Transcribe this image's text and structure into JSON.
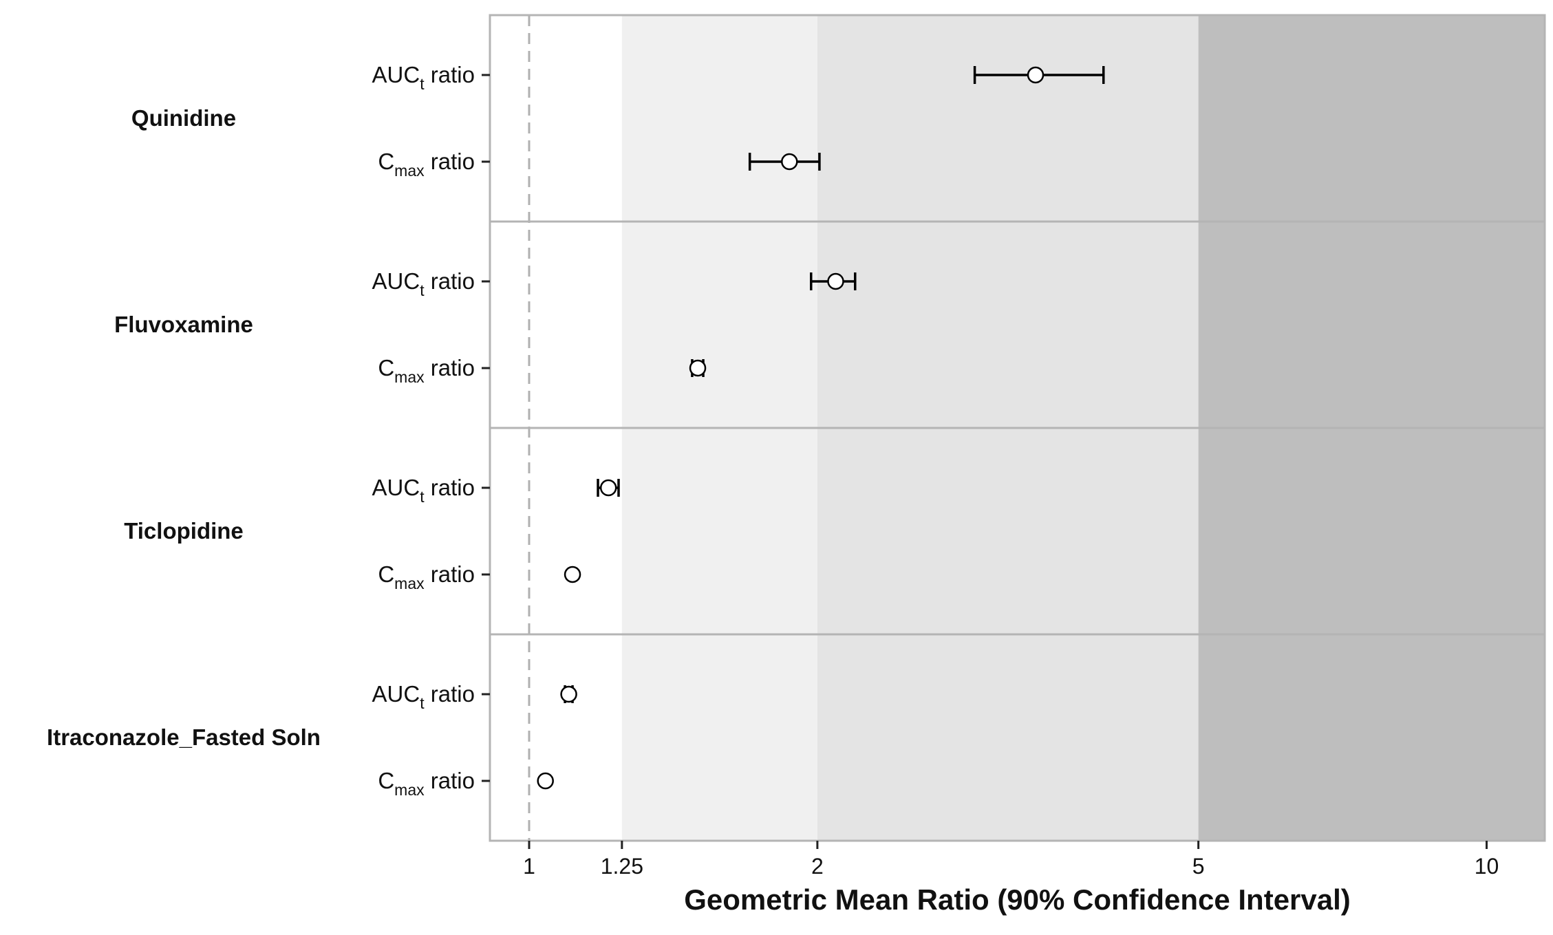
{
  "chart_data": {
    "type": "forest",
    "xlabel": "Geometric Mean Ratio (90% Confidence Interval)",
    "x_scale": "log",
    "xlim": [
      0.91,
      11.5
    ],
    "x_ticks": [
      1,
      1.25,
      2,
      5,
      10
    ],
    "x_tick_labels": [
      "1",
      "1.25",
      "2",
      "5",
      "10"
    ],
    "reference_line": 1,
    "bands": [
      {
        "from": 0.91,
        "to": 1.25,
        "color": "#ffffff"
      },
      {
        "from": 1.25,
        "to": 2,
        "color": "#f0f0f0"
      },
      {
        "from": 2,
        "to": 5,
        "color": "#e4e4e4"
      },
      {
        "from": 5,
        "to": 11.5,
        "color": "#bebebe"
      }
    ],
    "groups": [
      {
        "name": "Quinidine",
        "rows": [
          {
            "label_main": "AUC",
            "label_sub": "t",
            "label_rest": " ratio",
            "gmr": 3.38,
            "lo": 2.92,
            "hi": 3.98
          },
          {
            "label_main": "C",
            "label_sub": "max",
            "label_rest": " ratio",
            "gmr": 1.87,
            "lo": 1.7,
            "hi": 2.01
          }
        ]
      },
      {
        "name": "Fluvoxamine",
        "rows": [
          {
            "label_main": "AUC",
            "label_sub": "t",
            "label_rest": " ratio",
            "gmr": 2.09,
            "lo": 1.97,
            "hi": 2.19
          },
          {
            "label_main": "C",
            "label_sub": "max",
            "label_rest": " ratio",
            "gmr": 1.5,
            "lo": 1.48,
            "hi": 1.52
          }
        ]
      },
      {
        "name": "Ticlopidine",
        "rows": [
          {
            "label_main": "AUC",
            "label_sub": "t",
            "label_rest": " ratio",
            "gmr": 1.21,
            "lo": 1.18,
            "hi": 1.24
          },
          {
            "label_main": "C",
            "label_sub": "max",
            "label_rest": " ratio",
            "gmr": 1.11,
            "lo": 1.11,
            "hi": 1.11
          }
        ]
      },
      {
        "name": "Itraconazole_Fasted Soln",
        "rows": [
          {
            "label_main": "AUC",
            "label_sub": "t",
            "label_rest": " ratio",
            "gmr": 1.1,
            "lo": 1.09,
            "hi": 1.11
          },
          {
            "label_main": "C",
            "label_sub": "max",
            "label_rest": " ratio",
            "gmr": 1.04,
            "lo": 1.04,
            "hi": 1.04
          }
        ]
      }
    ]
  }
}
